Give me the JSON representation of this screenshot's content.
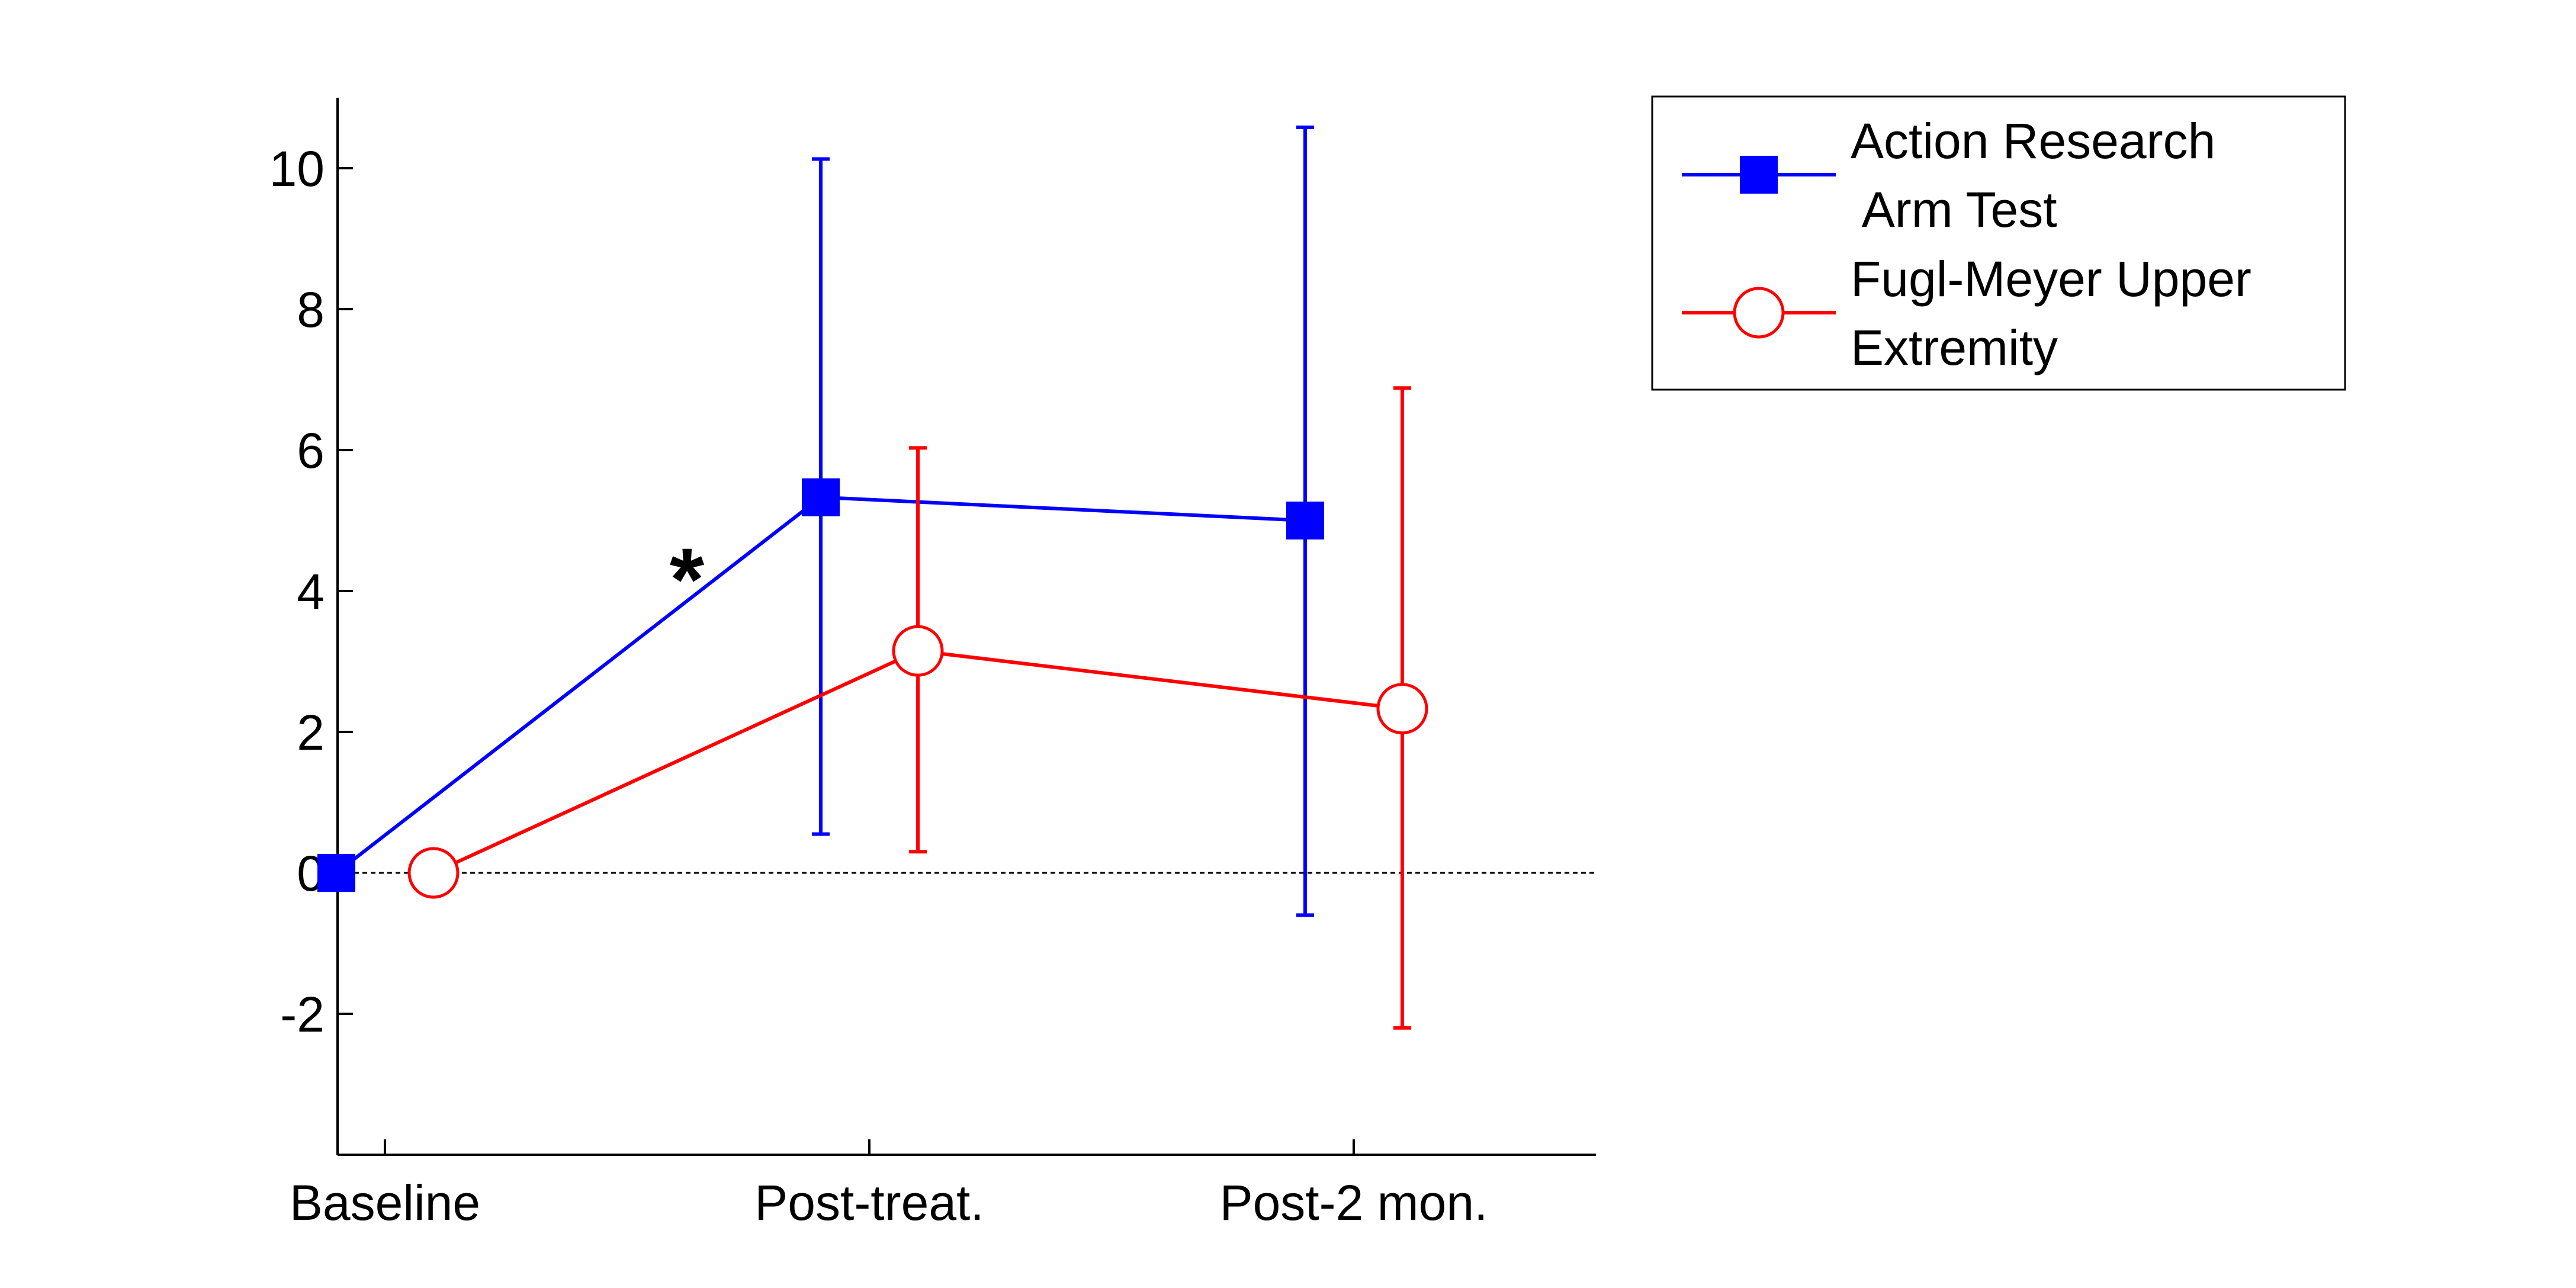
{
  "chart_data": {
    "type": "line",
    "categories": [
      "Baseline",
      "Post-treat.",
      "Post-2 mon."
    ],
    "ylim": [
      -4,
      11
    ],
    "yticks": [
      -2,
      0,
      2,
      4,
      6,
      8,
      10
    ],
    "ytick_labels": [
      "-2",
      "0",
      "2",
      "4",
      "6",
      "8",
      "10"
    ],
    "grid": false,
    "zero_reference_line": true,
    "legend_position": "top-right, outside plot",
    "series": [
      {
        "name_lines": [
          "Action Research",
          " Arm Test"
        ],
        "color": "#0000ff",
        "marker": "filled-square",
        "values": [
          0,
          5.33,
          5.0
        ],
        "error_low": [
          null,
          0.55,
          -0.6
        ],
        "error_high": [
          null,
          10.13,
          10.58
        ]
      },
      {
        "name_lines": [
          "Fugl-Meyer Upper",
          "Extremity"
        ],
        "color": "#ff0000",
        "marker": "open-circle",
        "values": [
          0,
          3.15,
          2.33
        ],
        "error_low": [
          null,
          0.3,
          -2.2
        ],
        "error_high": [
          null,
          6.03,
          6.88
        ]
      }
    ],
    "annotations": [
      {
        "text": "*",
        "between": [
          "Baseline",
          "Post-treat."
        ],
        "series": 0
      }
    ]
  }
}
